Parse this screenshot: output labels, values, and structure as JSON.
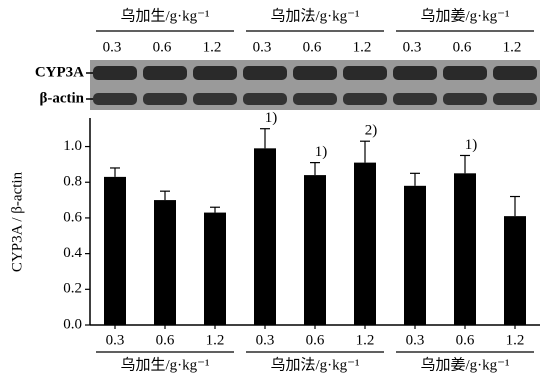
{
  "chart_data": {
    "type": "bar",
    "group_labels": [
      "乌加生/g·kg⁻¹",
      "乌加法/g·kg⁻¹",
      "乌加姜/g·kg⁻¹"
    ],
    "blot_labels": [
      "CYP3A",
      "β-actin"
    ],
    "y_label": "CYP3A / β-actin",
    "categories": [
      "0.3",
      "0.6",
      "1.2",
      "0.3",
      "0.6",
      "1.2",
      "0.3",
      "0.6",
      "1.2"
    ],
    "values": [
      0.83,
      0.7,
      0.63,
      0.99,
      0.84,
      0.91,
      0.78,
      0.85,
      0.61
    ],
    "errors": [
      0.05,
      0.05,
      0.03,
      0.11,
      0.07,
      0.12,
      0.07,
      0.1,
      0.11
    ],
    "annotations": [
      null,
      null,
      null,
      "1)",
      "1)",
      "2)",
      null,
      "1)",
      null
    ],
    "color": "#000000",
    "ylim": [
      0,
      1.16
    ],
    "yticks": [
      {
        "value": 0,
        "label": "0.0"
      },
      0.2,
      0.4,
      0.6,
      0.8,
      {
        "value": 1,
        "label": "1.0"
      }
    ]
  }
}
